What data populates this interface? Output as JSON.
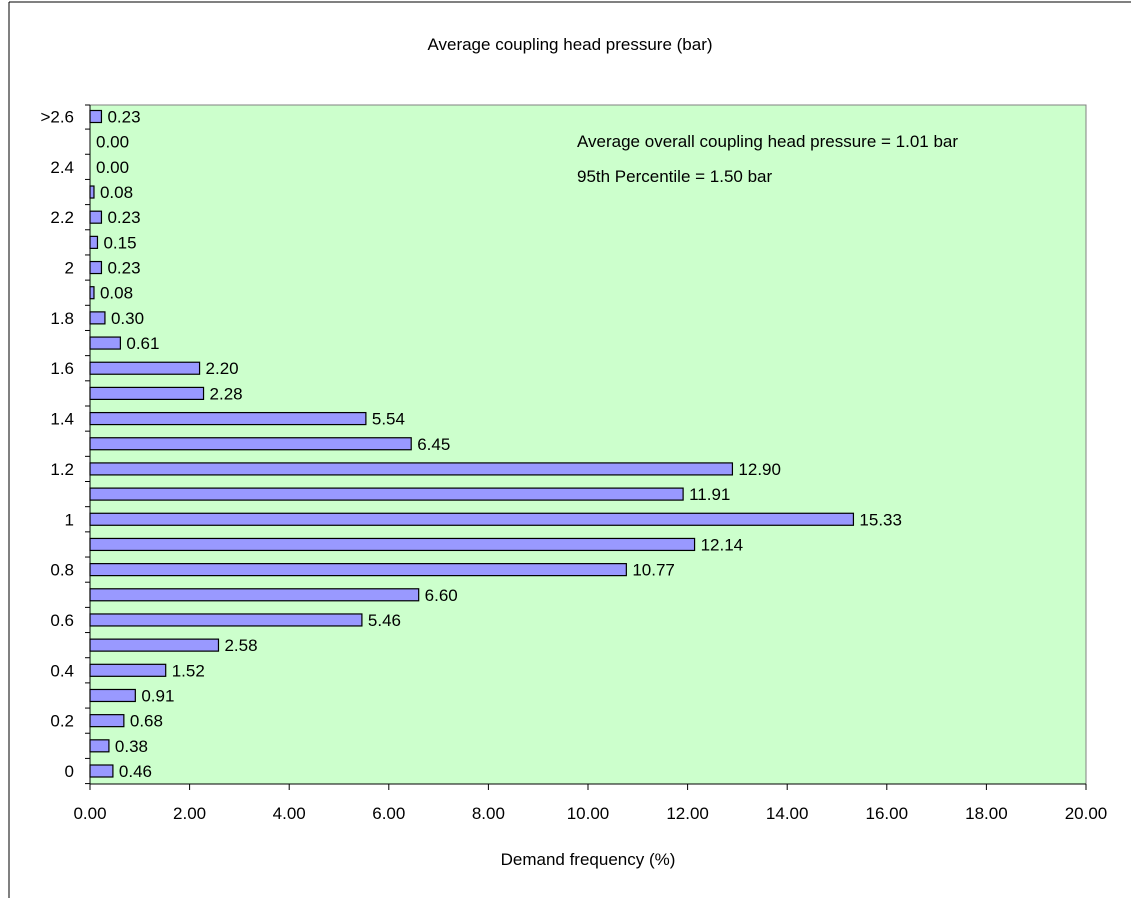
{
  "chart_data": {
    "type": "bar",
    "orientation": "horizontal",
    "title": "Average coupling head pressure (bar)",
    "xlabel": "Demand frequency (%)",
    "ylabel": "",
    "xlim": [
      0,
      20
    ],
    "x_ticks": [
      "0.00",
      "2.00",
      "4.00",
      "6.00",
      "8.00",
      "10.00",
      "12.00",
      "14.00",
      "16.00",
      "18.00",
      "20.00"
    ],
    "categories": [
      "0",
      "",
      "0.2",
      "",
      "0.4",
      "",
      "0.6",
      "",
      "0.8",
      "",
      "1",
      "",
      "1.2",
      "",
      "1.4",
      "",
      "1.6",
      "",
      "1.8",
      "",
      "2",
      "",
      "2.2",
      "",
      "2.4",
      "",
      ">2.6"
    ],
    "values": [
      0.46,
      0.38,
      0.68,
      0.91,
      1.52,
      2.58,
      5.46,
      6.6,
      10.77,
      12.14,
      15.33,
      11.91,
      12.9,
      6.45,
      5.54,
      2.28,
      2.2,
      0.61,
      0.3,
      0.08,
      0.23,
      0.15,
      0.23,
      0.08,
      0.0,
      0.0,
      0.23
    ],
    "value_labels": [
      "0.46",
      "0.38",
      "0.68",
      "0.91",
      "1.52",
      "2.58",
      "5.46",
      "6.60",
      "10.77",
      "12.14",
      "15.33",
      "11.91",
      "12.90",
      "6.45",
      "5.54",
      "2.28",
      "2.20",
      "0.61",
      "0.30",
      "0.08",
      "0.23",
      "0.15",
      "0.23",
      "0.08",
      "0.00",
      "0.00",
      "0.23"
    ],
    "annotations": [
      "Average overall coupling head pressure = 1.01 bar",
      "95th Percentile = 1.50 bar"
    ],
    "grid": false,
    "legend": "none",
    "colors": {
      "plot_background": "#ccffcc",
      "bar_fill": "#9999ff",
      "bar_stroke": "#000000",
      "axis": "#000000",
      "text": "#000000"
    }
  }
}
